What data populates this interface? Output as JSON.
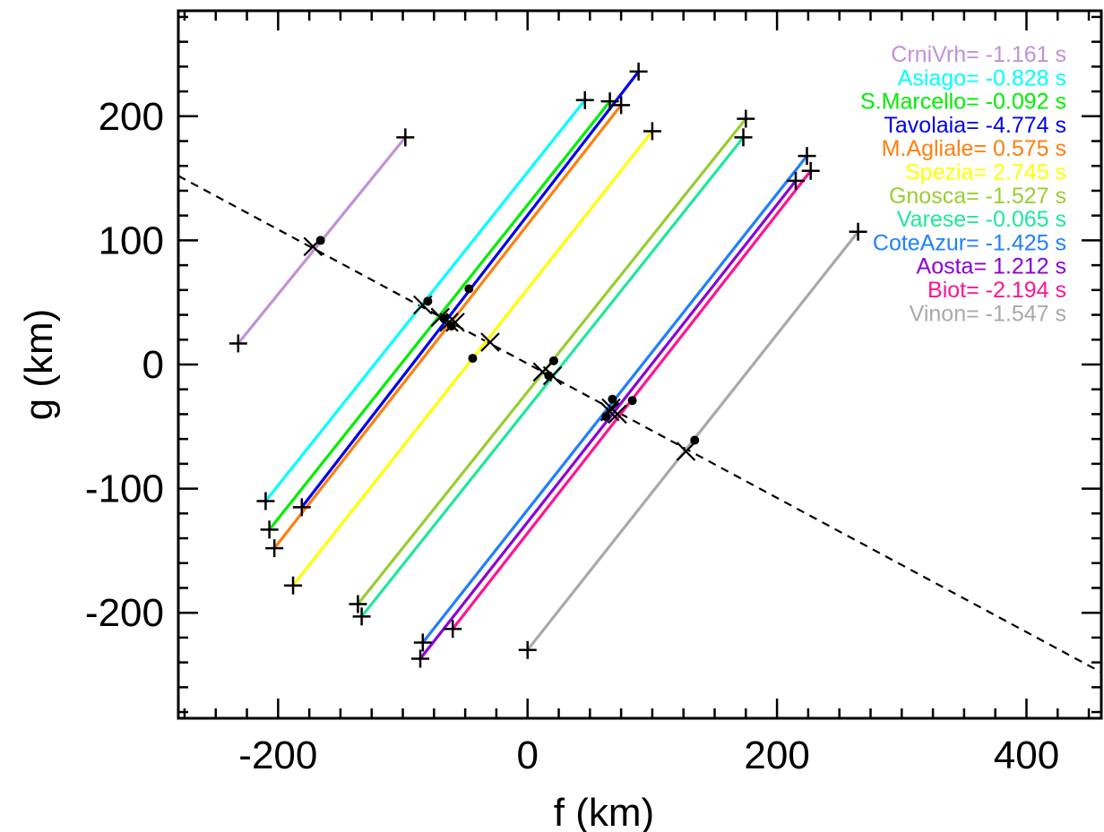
{
  "chart_data": {
    "type": "line",
    "xlabel": "f (km)",
    "ylabel": "g (km)",
    "xlim": [
      -280,
      460
    ],
    "ylim": [
      -285,
      285
    ],
    "x_ticks": [
      -200,
      0,
      200,
      400
    ],
    "y_ticks": [
      -200,
      -100,
      0,
      100,
      200
    ],
    "x_minor_step": 25,
    "y_minor_step": 20,
    "grid": false,
    "legend_position": "top-right",
    "dashed_line": {
      "x": [
        -280,
        460
      ],
      "y": [
        152,
        -248
      ]
    },
    "series": [
      {
        "name": "CrniVrh",
        "delay": "-1.161 s",
        "color": "#c191d6",
        "start": [
          -232,
          17
        ],
        "end": [
          -98,
          183
        ],
        "dot": [
          -166,
          100
        ],
        "cross": [
          -172,
          95
        ]
      },
      {
        "name": "Asiago",
        "delay": "-0.828 s",
        "color": "#00ffff",
        "start": [
          -210,
          -110
        ],
        "end": [
          46,
          213
        ],
        "dot": [
          -80,
          51
        ],
        "cross": [
          -84,
          48
        ]
      },
      {
        "name": "S.Marcello",
        "delay": "-0.092 s",
        "color": "#00ee00",
        "start": [
          -207,
          -133
        ],
        "end": [
          66,
          212
        ],
        "dot": [
          -67,
          37
        ],
        "cross": [
          -70,
          38
        ]
      },
      {
        "name": "Tavolaia",
        "delay": "-4.774 s",
        "color": "#0000ee",
        "start": [
          -181,
          -115
        ],
        "end": [
          89,
          236
        ],
        "dot": [
          -47,
          61
        ],
        "cross": [
          -63,
          34
        ]
      },
      {
        "name": "M.Agliale",
        "delay": " 0.575 s",
        "color": "#ff7f0e",
        "start": [
          -203,
          -148
        ],
        "end": [
          75,
          209
        ],
        "dot": [
          -61,
          31
        ],
        "cross": [
          -58,
          34
        ]
      },
      {
        "name": "Spezia",
        "delay": " 2.745 s",
        "color": "#ffff00",
        "start": [
          -188,
          -178
        ],
        "end": [
          100,
          188
        ],
        "dot": [
          -44,
          5
        ],
        "cross": [
          -30,
          18
        ]
      },
      {
        "name": "Gnosca",
        "delay": "-1.527 s",
        "color": "#9acd32",
        "start": [
          -136,
          -193
        ],
        "end": [
          175,
          198
        ],
        "dot": [
          21,
          3
        ],
        "cross": [
          12,
          -6
        ]
      },
      {
        "name": "Varese",
        "delay": "-0.065 s",
        "color": "#1ee89a",
        "start": [
          -133,
          -203
        ],
        "end": [
          173,
          183
        ],
        "dot": [
          17,
          -9
        ],
        "cross": [
          20,
          -9
        ]
      },
      {
        "name": "CoteAzur",
        "delay": "-1.425 s",
        "color": "#1f7fff",
        "start": [
          -84,
          -224
        ],
        "end": [
          224,
          168
        ],
        "dot": [
          68,
          -28
        ],
        "cross": [
          67,
          -35
        ]
      },
      {
        "name": "Aosta",
        "delay": " 1.212 s",
        "color": "#8b00d6",
        "start": [
          -86,
          -237
        ],
        "end": [
          215,
          148
        ],
        "dot": [
          63,
          -42
        ],
        "cross": [
          66,
          -38
        ]
      },
      {
        "name": "Biot",
        "delay": "-2.194 s",
        "color": "#ff1493",
        "start": [
          -60,
          -213
        ],
        "end": [
          227,
          156
        ],
        "dot": [
          84,
          -29
        ],
        "cross": [
          72,
          -40
        ]
      },
      {
        "name": "Vinon",
        "delay": "-1.547 s",
        "color": "#a9a9a9",
        "start": [
          0,
          -230
        ],
        "end": [
          265,
          107
        ],
        "dot": [
          134,
          -61
        ],
        "cross": [
          127,
          -70
        ]
      }
    ]
  }
}
